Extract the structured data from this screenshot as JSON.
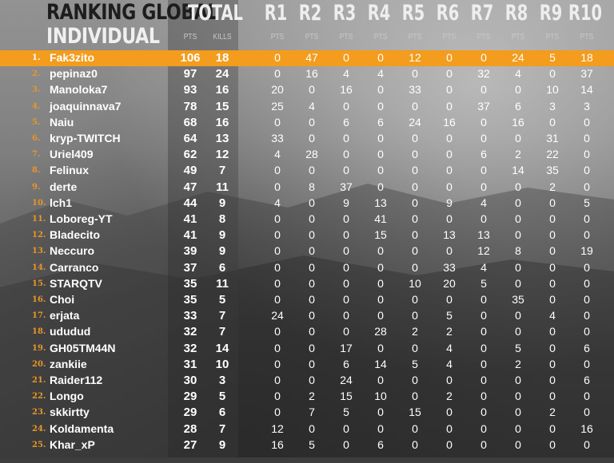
{
  "header": {
    "title_line1": "RANKING GLOBAL",
    "title_line2": "INDIVIDUAL",
    "total_label": "TOTAL",
    "round_labels": [
      "R1",
      "R2",
      "R3",
      "R4",
      "R5",
      "R6",
      "R7",
      "R8",
      "R9",
      "R10"
    ],
    "pts_label": "PTS",
    "kills_label": "KILLS"
  },
  "colors": {
    "highlight": "#f39c1d",
    "rank_number": "#e8962a",
    "text": "#ffffff"
  },
  "rows": [
    {
      "rank": "1.",
      "name": "Fak3zito",
      "pts": "106",
      "kills": "18",
      "rounds": [
        "0",
        "47",
        "0",
        "0",
        "12",
        "0",
        "0",
        "24",
        "5",
        "18"
      ]
    },
    {
      "rank": "2.",
      "name": "pepinaz0",
      "pts": "97",
      "kills": "24",
      "rounds": [
        "0",
        "16",
        "4",
        "4",
        "0",
        "0",
        "32",
        "4",
        "0",
        "37"
      ]
    },
    {
      "rank": "3.",
      "name": "Manoloka7",
      "pts": "93",
      "kills": "16",
      "rounds": [
        "20",
        "0",
        "16",
        "0",
        "33",
        "0",
        "0",
        "0",
        "10",
        "14"
      ]
    },
    {
      "rank": "4.",
      "name": "joaquinnava7",
      "pts": "78",
      "kills": "15",
      "rounds": [
        "25",
        "4",
        "0",
        "0",
        "0",
        "0",
        "37",
        "6",
        "3",
        "3"
      ]
    },
    {
      "rank": "5.",
      "name": "Naiu",
      "pts": "68",
      "kills": "16",
      "rounds": [
        "0",
        "0",
        "6",
        "6",
        "24",
        "16",
        "0",
        "16",
        "0",
        "0"
      ]
    },
    {
      "rank": "6.",
      "name": "kryp-TWITCH",
      "pts": "64",
      "kills": "13",
      "rounds": [
        "33",
        "0",
        "0",
        "0",
        "0",
        "0",
        "0",
        "0",
        "31",
        "0"
      ]
    },
    {
      "rank": "7.",
      "name": "Uriel409",
      "pts": "62",
      "kills": "12",
      "rounds": [
        "4",
        "28",
        "0",
        "0",
        "0",
        "0",
        "6",
        "2",
        "22",
        "0"
      ]
    },
    {
      "rank": "8.",
      "name": "Felinux",
      "pts": "49",
      "kills": "7",
      "rounds": [
        "0",
        "0",
        "0",
        "0",
        "0",
        "0",
        "0",
        "14",
        "35",
        "0"
      ]
    },
    {
      "rank": "9.",
      "name": "derte",
      "pts": "47",
      "kills": "11",
      "rounds": [
        "0",
        "8",
        "37",
        "0",
        "0",
        "0",
        "0",
        "0",
        "2",
        "0"
      ]
    },
    {
      "rank": "10.",
      "name": "lch1",
      "pts": "44",
      "kills": "9",
      "rounds": [
        "4",
        "0",
        "9",
        "13",
        "0",
        "9",
        "4",
        "0",
        "0",
        "5"
      ]
    },
    {
      "rank": "11.",
      "name": "Loboreg-YT",
      "pts": "41",
      "kills": "8",
      "rounds": [
        "0",
        "0",
        "0",
        "41",
        "0",
        "0",
        "0",
        "0",
        "0",
        "0"
      ]
    },
    {
      "rank": "12.",
      "name": "Bladecito",
      "pts": "41",
      "kills": "9",
      "rounds": [
        "0",
        "0",
        "0",
        "15",
        "0",
        "13",
        "13",
        "0",
        "0",
        "0"
      ]
    },
    {
      "rank": "13.",
      "name": "Neccuro",
      "pts": "39",
      "kills": "9",
      "rounds": [
        "0",
        "0",
        "0",
        "0",
        "0",
        "0",
        "12",
        "8",
        "0",
        "19"
      ]
    },
    {
      "rank": "14.",
      "name": "Carranco",
      "pts": "37",
      "kills": "6",
      "rounds": [
        "0",
        "0",
        "0",
        "0",
        "0",
        "33",
        "4",
        "0",
        "0",
        "0"
      ]
    },
    {
      "rank": "15.",
      "name": "STARQTV",
      "pts": "35",
      "kills": "11",
      "rounds": [
        "0",
        "0",
        "0",
        "0",
        "10",
        "20",
        "5",
        "0",
        "0",
        "0"
      ]
    },
    {
      "rank": "16.",
      "name": "Choi",
      "pts": "35",
      "kills": "5",
      "rounds": [
        "0",
        "0",
        "0",
        "0",
        "0",
        "0",
        "0",
        "35",
        "0",
        "0"
      ]
    },
    {
      "rank": "17.",
      "name": "erjata",
      "pts": "33",
      "kills": "7",
      "rounds": [
        "24",
        "0",
        "0",
        "0",
        "0",
        "5",
        "0",
        "0",
        "4",
        "0"
      ]
    },
    {
      "rank": "18.",
      "name": "ududud",
      "pts": "32",
      "kills": "7",
      "rounds": [
        "0",
        "0",
        "0",
        "28",
        "2",
        "2",
        "0",
        "0",
        "0",
        "0"
      ]
    },
    {
      "rank": "19.",
      "name": "GH05TM44N",
      "pts": "32",
      "kills": "14",
      "rounds": [
        "0",
        "0",
        "17",
        "0",
        "0",
        "4",
        "0",
        "5",
        "0",
        "6"
      ]
    },
    {
      "rank": "20.",
      "name": "zankiie",
      "pts": "31",
      "kills": "10",
      "rounds": [
        "0",
        "0",
        "6",
        "14",
        "5",
        "4",
        "0",
        "2",
        "0",
        "0"
      ]
    },
    {
      "rank": "21.",
      "name": "Raider112",
      "pts": "30",
      "kills": "3",
      "rounds": [
        "0",
        "0",
        "24",
        "0",
        "0",
        "0",
        "0",
        "0",
        "0",
        "6"
      ]
    },
    {
      "rank": "22.",
      "name": "Longo",
      "pts": "29",
      "kills": "5",
      "rounds": [
        "0",
        "2",
        "15",
        "10",
        "0",
        "2",
        "0",
        "0",
        "0",
        "0"
      ]
    },
    {
      "rank": "23.",
      "name": "skkirtty",
      "pts": "29",
      "kills": "6",
      "rounds": [
        "0",
        "7",
        "5",
        "0",
        "15",
        "0",
        "0",
        "0",
        "2",
        "0"
      ]
    },
    {
      "rank": "24.",
      "name": "Koldamenta",
      "pts": "28",
      "kills": "7",
      "rounds": [
        "12",
        "0",
        "0",
        "0",
        "0",
        "0",
        "0",
        "0",
        "0",
        "16"
      ]
    },
    {
      "rank": "25.",
      "name": "Khar_xP",
      "pts": "27",
      "kills": "9",
      "rounds": [
        "16",
        "5",
        "0",
        "6",
        "0",
        "0",
        "0",
        "0",
        "0",
        "0"
      ]
    }
  ]
}
